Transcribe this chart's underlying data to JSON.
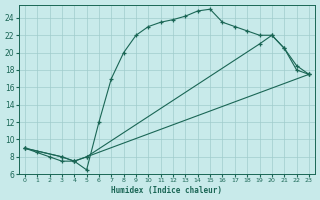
{
  "xlabel": "Humidex (Indice chaleur)",
  "bg_color": "#c8eaea",
  "grid_color": "#a0cccc",
  "line_color": "#1a6655",
  "xlim": [
    -0.5,
    23.5
  ],
  "ylim": [
    6,
    25.5
  ],
  "xticks": [
    0,
    1,
    2,
    3,
    4,
    5,
    6,
    7,
    8,
    9,
    10,
    11,
    12,
    13,
    14,
    15,
    16,
    17,
    18,
    19,
    20,
    21,
    22,
    23
  ],
  "yticks": [
    6,
    8,
    10,
    12,
    14,
    16,
    18,
    20,
    22,
    24
  ],
  "curve1_x": [
    0,
    1,
    2,
    3,
    4,
    5,
    6,
    7,
    8,
    9,
    10,
    11,
    12,
    13,
    14,
    15,
    16,
    17,
    18,
    19,
    20,
    21,
    22,
    23
  ],
  "curve1_y": [
    9.0,
    8.5,
    8.0,
    7.5,
    7.5,
    6.5,
    12.0,
    17.0,
    20.0,
    22.0,
    23.0,
    23.5,
    23.8,
    24.2,
    24.8,
    25.0,
    23.5,
    23.0,
    22.5,
    22.0,
    22.0,
    20.5,
    18.0,
    17.5
  ],
  "curve2_x": [
    0,
    3,
    4,
    5,
    23
  ],
  "curve2_y": [
    9.0,
    8.0,
    7.5,
    8.0,
    17.5
  ],
  "curve3_x": [
    0,
    3,
    4,
    5,
    19,
    20,
    21,
    22,
    23
  ],
  "curve3_y": [
    9.0,
    8.0,
    7.5,
    8.0,
    21.0,
    22.0,
    20.5,
    18.5,
    17.5
  ]
}
